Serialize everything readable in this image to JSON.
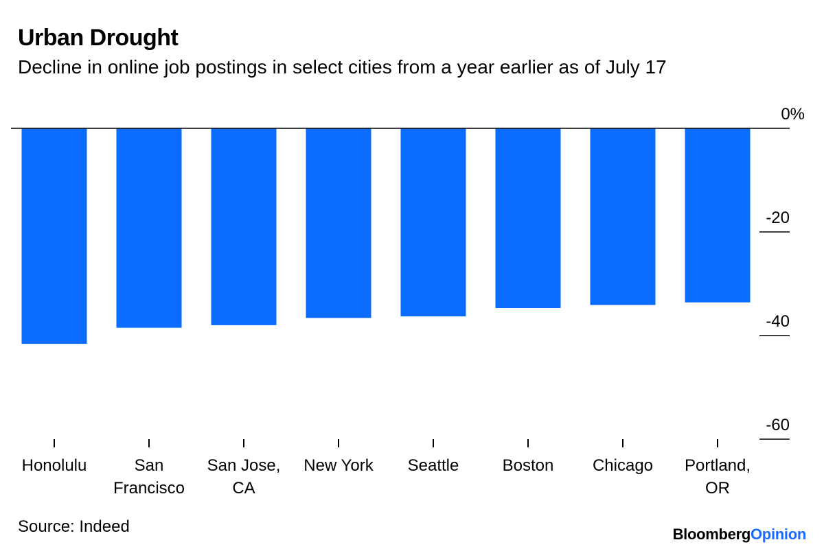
{
  "header": {
    "title": "Urban Drought",
    "subtitle": "Decline in online job postings in select cities from a year earlier as of July 17"
  },
  "footer": {
    "source": "Source: Indeed",
    "brand_main": "Bloomberg",
    "brand_accent": "Opinion"
  },
  "colors": {
    "bar": "#0a6dff",
    "brand_accent": "#1a6bff"
  },
  "chart_data": {
    "type": "bar",
    "title": "Urban Drought",
    "subtitle": "Decline in online job postings in select cities from a year earlier as of July 17",
    "categories": [
      [
        "Honolulu"
      ],
      [
        "San",
        "Francisco"
      ],
      [
        "San Jose,",
        "CA"
      ],
      [
        "New York"
      ],
      [
        "Seattle"
      ],
      [
        "Boston"
      ],
      [
        "Chicago"
      ],
      [
        "Portland,",
        "OR"
      ]
    ],
    "values": [
      -41.6,
      -38.5,
      -38.0,
      -36.6,
      -36.3,
      -34.7,
      -34.1,
      -33.6
    ],
    "ylim": [
      -60,
      0
    ],
    "yticks": [
      0,
      -20,
      -40,
      -60
    ],
    "ytick_labels": [
      "0%",
      "-20",
      "-40",
      "-60"
    ],
    "y_axis_side": "right",
    "xlabel": "",
    "ylabel": ""
  }
}
